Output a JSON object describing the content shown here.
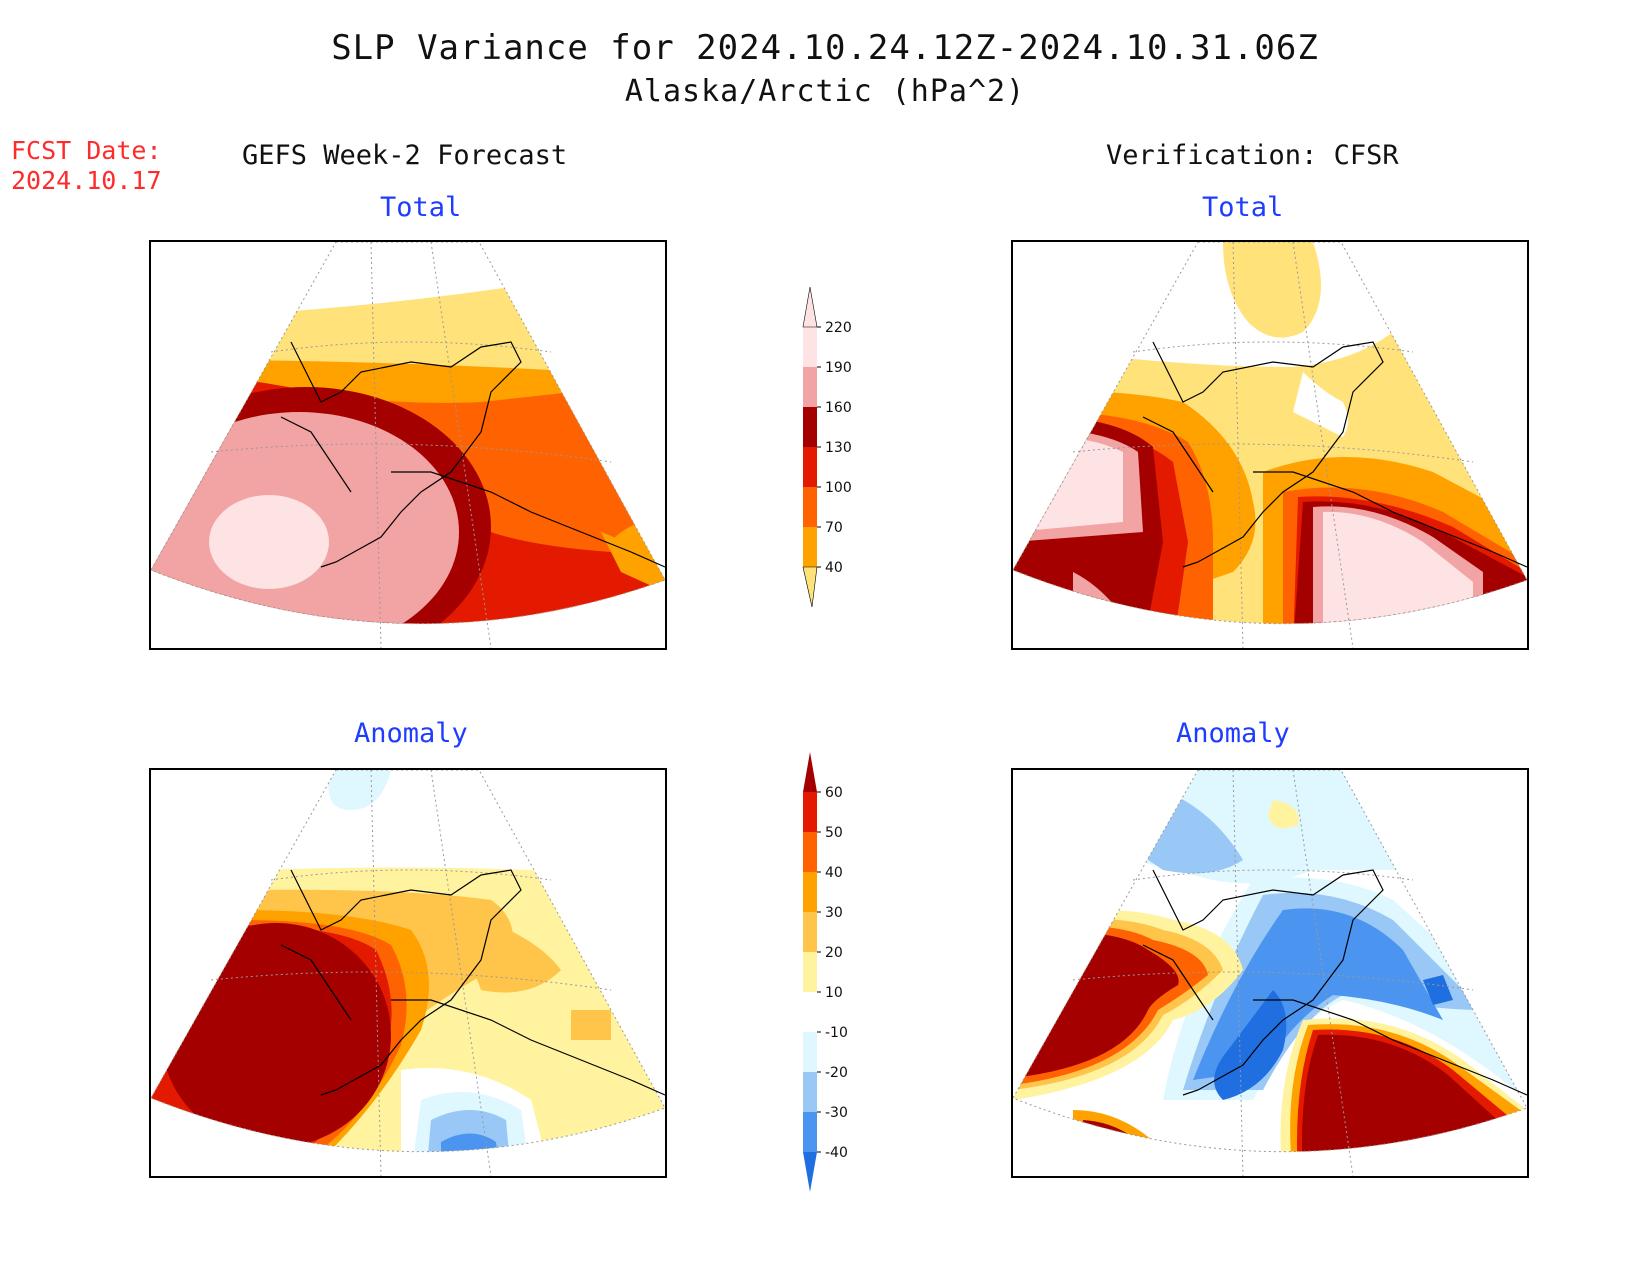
{
  "header": {
    "title": "SLP Variance for 2024.10.24.12Z-2024.10.31.06Z",
    "subtitle": "Alaska/Arctic (hPa^2)"
  },
  "forecast_date": {
    "label": "FCST Date:",
    "value": "2024.10.17"
  },
  "columns": {
    "left": "GEFS Week-2 Forecast",
    "right": "Verification: CFSR"
  },
  "panels": {
    "fcst_total": {
      "title": "Total"
    },
    "verif_total": {
      "title": "Total"
    },
    "fcst_anomaly": {
      "title": "Anomaly"
    },
    "verif_anomaly": {
      "title": "Anomaly"
    }
  },
  "colorbars": {
    "total": {
      "levels": [
        "40",
        "70",
        "100",
        "130",
        "160",
        "190",
        "220"
      ],
      "colors": [
        "#ffe27a",
        "#ffa200",
        "#ff6200",
        "#e31a00",
        "#a50000",
        "#f2a3a3",
        "#fde3e3"
      ]
    },
    "anomaly": {
      "levels": [
        "-40",
        "-30",
        "-20",
        "-10",
        "10",
        "20",
        "30",
        "40",
        "50",
        "60"
      ],
      "colors": [
        "#1f6fe0",
        "#4b95f0",
        "#99c8f7",
        "#dff7ff",
        "#ffffff",
        "#fff3a0",
        "#ffc44a",
        "#ffa200",
        "#ff6200",
        "#e31a00",
        "#a50000"
      ]
    }
  }
}
